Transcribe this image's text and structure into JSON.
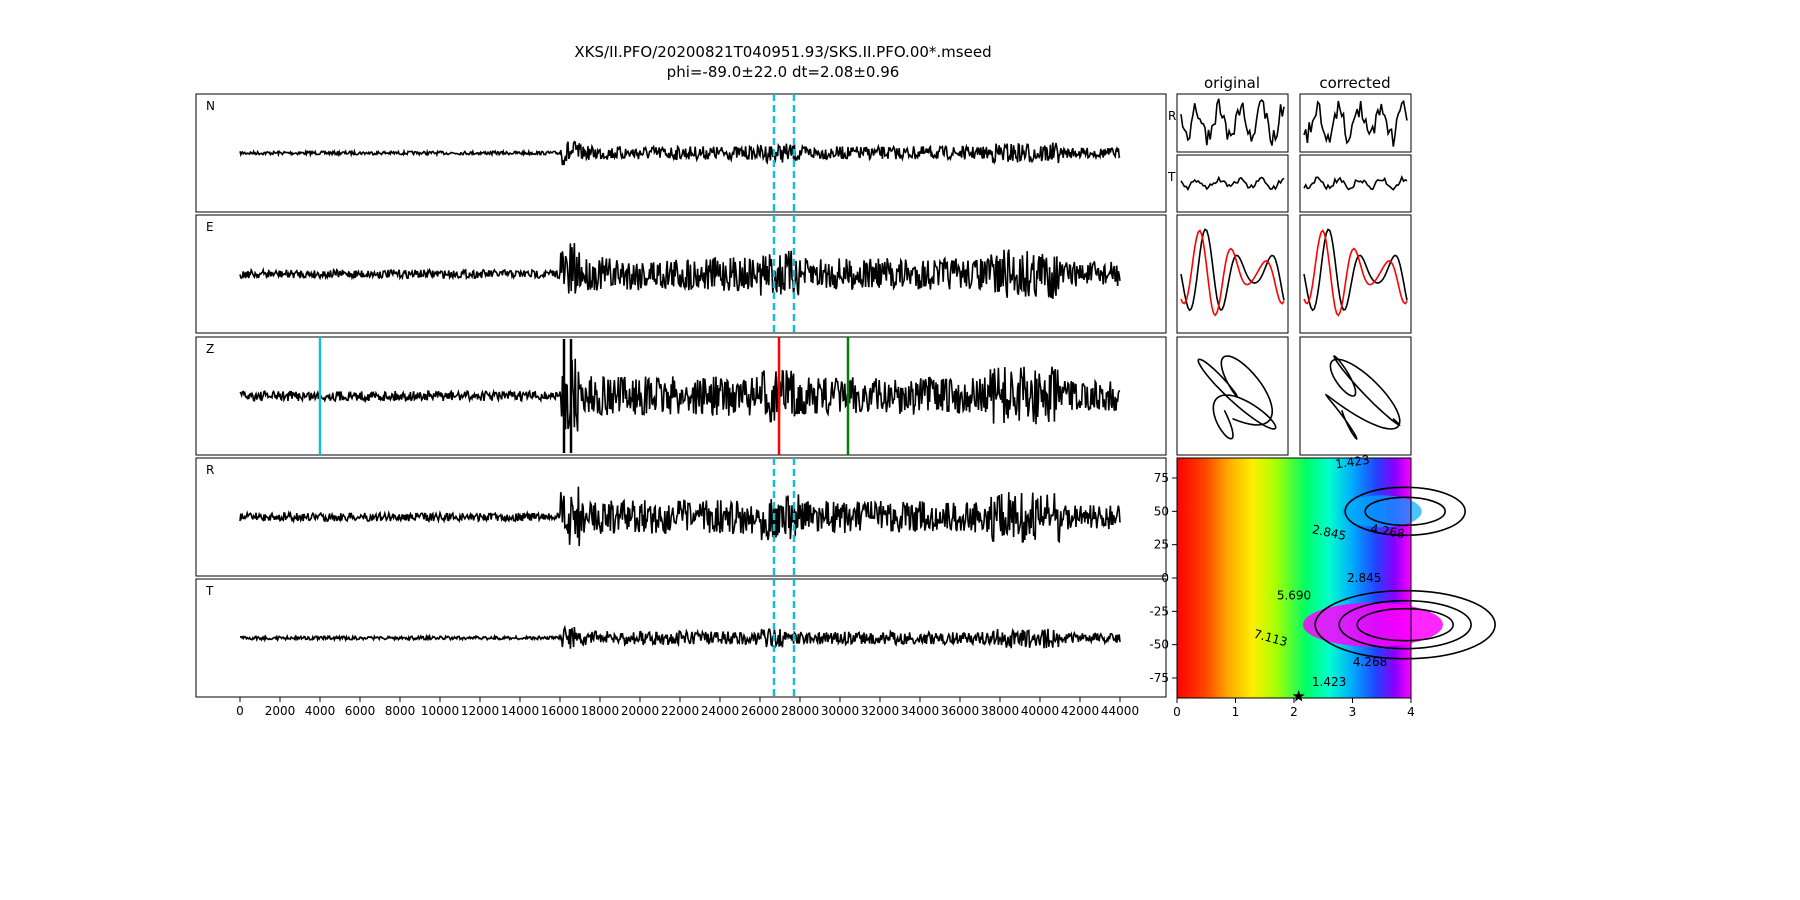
{
  "title": {
    "line1": "XKS/II.PFO/20200821T040951.93/SKS.II.PFO.00*.mseed",
    "line2": "phi=-89.0±22.0 dt=2.08±0.96"
  },
  "column_titles": {
    "original": "original",
    "corrected": "corrected"
  },
  "colors": {
    "window_marker": "#17becf",
    "phase_red": "#ff0000",
    "phase_green": "#008000",
    "trace": "#000000",
    "particle_second": "#ff0000"
  },
  "chart_data": [
    {
      "type": "line",
      "name": "seismogram-panels",
      "traces": [
        {
          "label": "N",
          "amplitude": 0.35,
          "phase_markers": [],
          "window": [
            26700,
            27700
          ]
        },
        {
          "label": "E",
          "amplitude": 0.85,
          "phase_markers": [],
          "window": [
            26700,
            27700
          ]
        },
        {
          "label": "Z",
          "amplitude": 1.0,
          "phase_markers": [
            {
              "x": 4000,
              "color": "#17becf"
            },
            {
              "x": 26950,
              "color": "#ff0000"
            },
            {
              "x": 30400,
              "color": "#008000"
            }
          ],
          "window": null
        },
        {
          "label": "R",
          "amplitude": 0.85,
          "phase_markers": [],
          "window": [
            26700,
            27700
          ]
        },
        {
          "label": "T",
          "amplitude": 0.35,
          "phase_markers": [],
          "window": [
            26700,
            27700
          ]
        }
      ],
      "xlim": [
        -2200,
        46300
      ],
      "data_range": [
        0,
        44000
      ],
      "x_ticks": [
        0,
        2000,
        4000,
        6000,
        8000,
        10000,
        12000,
        14000,
        16000,
        18000,
        20000,
        22000,
        24000,
        26000,
        28000,
        30000,
        32000,
        34000,
        36000,
        38000,
        40000,
        42000,
        44000
      ]
    },
    {
      "type": "line",
      "name": "window-comparison",
      "rows": [
        "R",
        "T"
      ],
      "columns": [
        "original",
        "corrected"
      ]
    },
    {
      "type": "heatmap",
      "name": "energy-grid",
      "xlim": [
        0,
        4
      ],
      "ylim": [
        -90,
        90
      ],
      "x_ticks": [
        0,
        1,
        2,
        3,
        4
      ],
      "y_ticks": [
        75,
        50,
        25,
        0,
        -25,
        -50,
        -75
      ],
      "contour_labels": [
        {
          "text": "1.423",
          "x": 3.0,
          "y": 87,
          "rot": -8
        },
        {
          "text": "2.845",
          "x": 2.6,
          "y": 34,
          "rot": 12
        },
        {
          "text": "4.268",
          "x": 3.6,
          "y": 35,
          "rot": 10
        },
        {
          "text": "2.845",
          "x": 3.2,
          "y": 0,
          "rot": 0
        },
        {
          "text": "5.690",
          "x": 2.0,
          "y": -13,
          "rot": 0
        },
        {
          "text": "7.113",
          "x": 1.6,
          "y": -45,
          "rot": 15
        },
        {
          "text": "4.268",
          "x": 3.3,
          "y": -63,
          "rot": 0
        },
        {
          "text": "1.423",
          "x": 2.6,
          "y": -78,
          "rot": 0
        }
      ],
      "best": {
        "dt": 2.08,
        "phi": -89.0
      },
      "grid": false
    }
  ]
}
